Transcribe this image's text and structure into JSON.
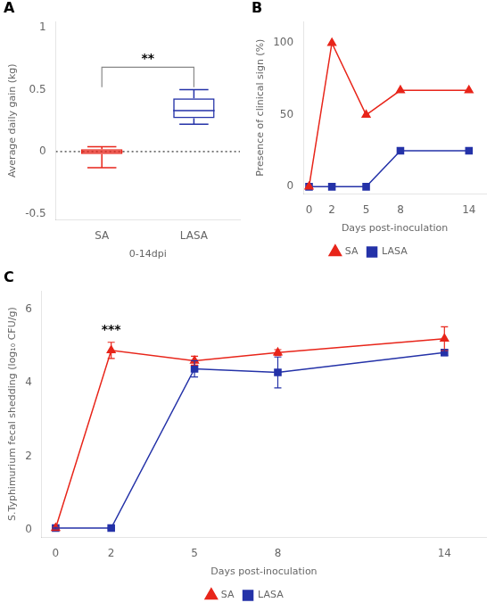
{
  "chart_data": [
    {
      "type": "box",
      "panel_label": "A",
      "xlabel": "0-14dpi",
      "ylabel": "Average daily gain (kg)",
      "categories": [
        "SA",
        "LASA"
      ],
      "boxes": [
        {
          "median": 0.0,
          "q1": -0.02,
          "q3": 0.02,
          "whislo": -0.13,
          "whishi": 0.04
        },
        {
          "median": 0.33,
          "q1": 0.27,
          "q3": 0.43,
          "whislo": 0.22,
          "whishi": 0.5
        }
      ],
      "colors": [
        "#e8251a",
        "#2432a8"
      ],
      "reference_line": {
        "y": 0.0,
        "line_style": "dotted"
      },
      "bracket": {
        "from": "SA",
        "to": "LASA",
        "y_low": 0.52,
        "y_high": 0.68,
        "color": "#888888",
        "text": "**"
      },
      "ylim": [
        -0.55,
        1.05
      ],
      "yticks": [
        -0.5,
        0.0,
        0.5,
        1.0
      ],
      "grid": false
    },
    {
      "type": "line",
      "panel_label": "B",
      "xlabel": "Days post-inoculation",
      "ylabel": "Presence of clinical sign (%)",
      "x": [
        0,
        2,
        5,
        8,
        14
      ],
      "series": [
        {
          "name": "SA",
          "color": "#e8251a",
          "marker": "triangle",
          "values": [
            0,
            100,
            50,
            67,
            67
          ]
        },
        {
          "name": "LASA",
          "color": "#2432a8",
          "marker": "square",
          "values": [
            0,
            0,
            0,
            25,
            25
          ]
        }
      ],
      "xlim": [
        -0.5,
        15.5
      ],
      "xticks": [
        0,
        2,
        5,
        8,
        14
      ],
      "ylim": [
        -5,
        115
      ],
      "yticks": [
        0,
        50,
        100
      ],
      "grid": false,
      "legend": "bottom"
    },
    {
      "type": "line",
      "panel_label": "C",
      "xlabel": "Days post-inoculation",
      "ylabel": "S.Typhimurium fecal shedding (log₁₀ CFU/g)",
      "x": [
        0,
        2,
        5,
        8,
        14
      ],
      "series": [
        {
          "name": "SA",
          "color": "#e8251a",
          "marker": "triangle",
          "values": [
            0.05,
            4.88,
            4.6,
            4.82,
            5.2
          ],
          "errors": [
            0.02,
            0.22,
            0.12,
            0.08,
            0.32
          ]
        },
        {
          "name": "LASA",
          "color": "#2432a8",
          "marker": "square",
          "values": [
            0.05,
            0.05,
            4.38,
            4.28,
            4.82
          ],
          "errors": [
            0.02,
            0.02,
            0.22,
            0.42,
            0.08
          ]
        }
      ],
      "annotations": [
        {
          "x": 2,
          "y": 5.25,
          "text": "***"
        }
      ],
      "xlim": [
        -0.5,
        15.5
      ],
      "xticks": [
        0,
        2,
        5,
        8,
        14
      ],
      "ylim": [
        -0.2,
        6.5
      ],
      "yticks": [
        0,
        2,
        4,
        6
      ],
      "grid": false,
      "legend": "bottom"
    }
  ]
}
